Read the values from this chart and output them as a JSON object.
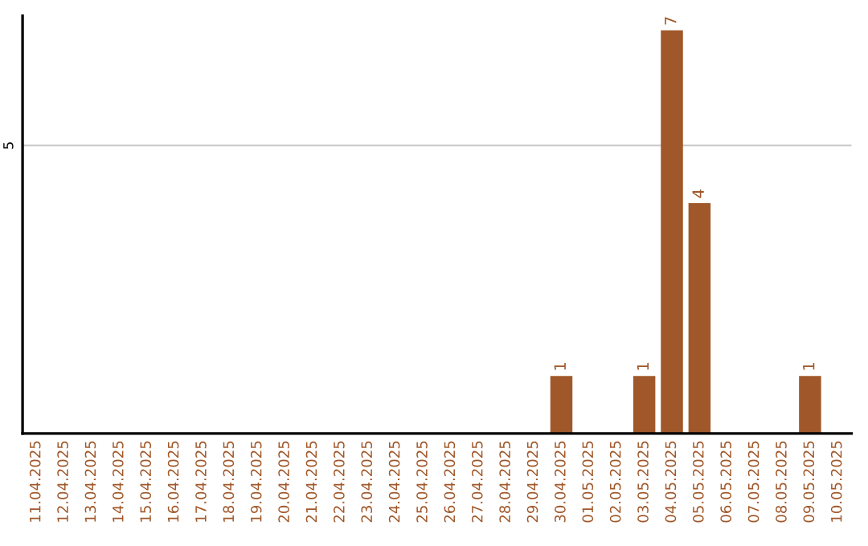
{
  "chart_data": {
    "type": "bar",
    "categories": [
      "11.04.2025",
      "12.04.2025",
      "13.04.2025",
      "14.04.2025",
      "15.04.2025",
      "16.04.2025",
      "17.04.2025",
      "18.04.2025",
      "19.04.2025",
      "20.04.2025",
      "21.04.2025",
      "22.04.2025",
      "23.04.2025",
      "24.04.2025",
      "25.04.2025",
      "26.04.2025",
      "27.04.2025",
      "28.04.2025",
      "29.04.2025",
      "30.04.2025",
      "01.05.2025",
      "02.05.2025",
      "03.05.2025",
      "04.05.2025",
      "05.05.2025",
      "06.05.2025",
      "07.05.2025",
      "08.05.2025",
      "09.05.2025",
      "10.05.2025"
    ],
    "values": [
      null,
      null,
      null,
      null,
      null,
      null,
      null,
      null,
      null,
      null,
      null,
      null,
      null,
      null,
      null,
      null,
      null,
      null,
      null,
      1,
      null,
      null,
      1,
      7,
      4,
      null,
      null,
      null,
      1,
      null
    ],
    "ylim": [
      0,
      7.25
    ],
    "value_labels": [
      null,
      null,
      null,
      null,
      null,
      null,
      null,
      null,
      null,
      null,
      null,
      null,
      null,
      null,
      null,
      null,
      null,
      null,
      null,
      "1",
      null,
      null,
      "1",
      "7",
      "4",
      null,
      null,
      null,
      "1",
      null
    ],
    "color": "#a0582a",
    "ref_lines": [
      {
        "axis": "y",
        "value": 5,
        "label": "5",
        "color": "#cccccc"
      }
    ]
  }
}
